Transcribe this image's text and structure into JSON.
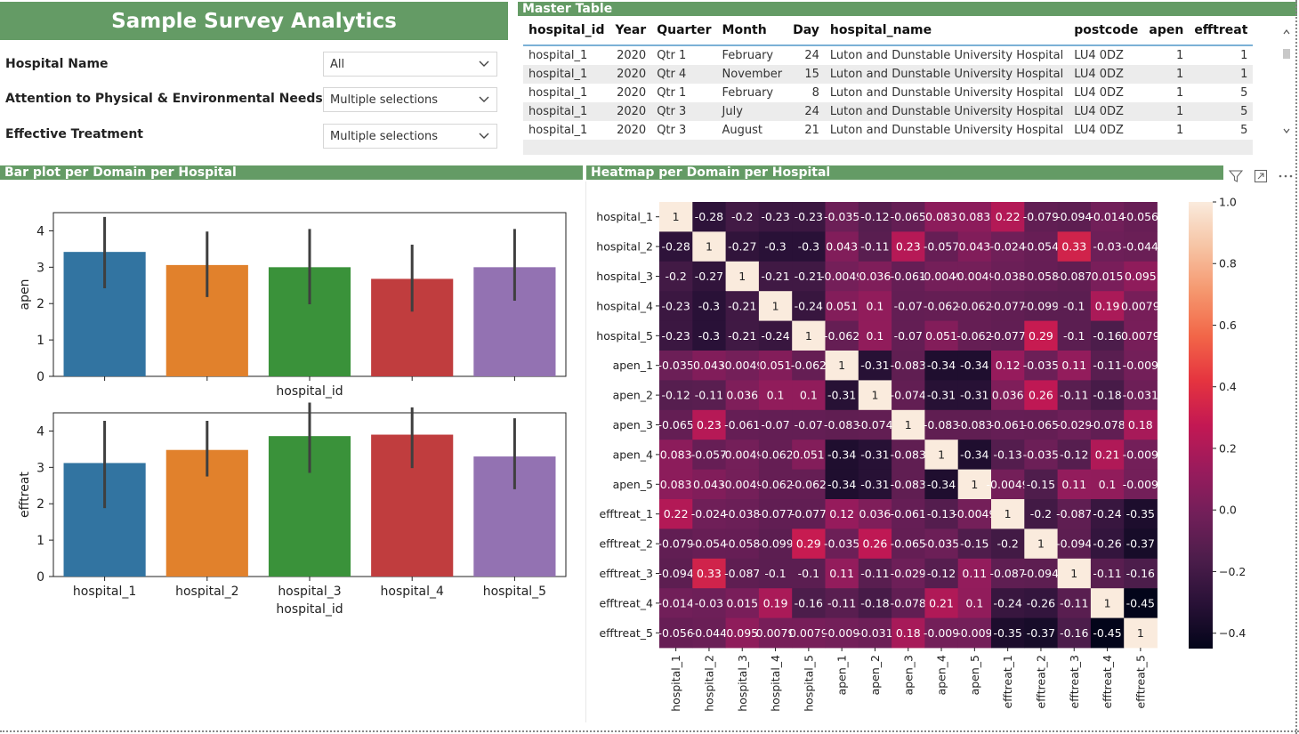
{
  "title": "Sample Survey Analytics",
  "filters": [
    {
      "label": "Hospital Name",
      "value": "All"
    },
    {
      "label": "Attention to Physical & Environmental Needs",
      "value": "Multiple selections"
    },
    {
      "label": "Effective Treatment",
      "value": "Multiple selections"
    }
  ],
  "master_table": {
    "title": "Master Table",
    "columns": [
      "hospital_id",
      "Year",
      "Quarter",
      "Month",
      "Day",
      "hospital_name",
      "postcode",
      "apen",
      "efftreat"
    ],
    "rows": [
      [
        "hospital_1",
        "2020",
        "Qtr 1",
        "February",
        "24",
        "Luton and Dunstable University Hospital",
        "LU4 0DZ",
        "1",
        "1"
      ],
      [
        "hospital_1",
        "2020",
        "Qtr 4",
        "November",
        "15",
        "Luton and Dunstable University Hospital",
        "LU4 0DZ",
        "1",
        "1"
      ],
      [
        "hospital_1",
        "2020",
        "Qtr 1",
        "February",
        "8",
        "Luton and Dunstable University Hospital",
        "LU4 0DZ",
        "1",
        "5"
      ],
      [
        "hospital_1",
        "2020",
        "Qtr 3",
        "July",
        "24",
        "Luton and Dunstable University Hospital",
        "LU4 0DZ",
        "1",
        "5"
      ],
      [
        "hospital_1",
        "2020",
        "Qtr 3",
        "August",
        "21",
        "Luton and Dunstable University Hospital",
        "LU4 0DZ",
        "1",
        "5"
      ]
    ]
  },
  "bar_section_title": "Bar plot per Domain per Hospital",
  "heatmap_section_title": "Heatmap per Domain per Hospital",
  "colors": {
    "header_green": "#649b65",
    "bar_colors": [
      "#3274a1",
      "#e1812c",
      "#3a923a",
      "#c03d3e",
      "#9372b2"
    ]
  },
  "icons": [
    "filter-icon",
    "focus-mode-icon",
    "more-options-icon",
    "chevron-down-icon"
  ],
  "chart_data": [
    {
      "type": "bar",
      "categories": [
        "hospital_1",
        "hospital_2",
        "hospital_3",
        "hospital_4",
        "hospital_5"
      ],
      "values": [
        3.42,
        3.06,
        3.0,
        2.68,
        3.0
      ],
      "error_low": [
        2.42,
        2.18,
        1.98,
        1.78,
        2.08
      ],
      "error_high": [
        4.38,
        3.98,
        4.05,
        3.62,
        4.05
      ],
      "xlabel": "hospital_id",
      "ylabel": "apen",
      "ylim": [
        0,
        4.5
      ],
      "yticks": [
        "0",
        "1",
        "2",
        "3",
        "4"
      ],
      "show_x_ticklabels": false
    },
    {
      "type": "bar",
      "categories": [
        "hospital_1",
        "hospital_2",
        "hospital_3",
        "hospital_4",
        "hospital_5"
      ],
      "values": [
        3.12,
        3.48,
        3.86,
        3.9,
        3.3
      ],
      "error_low": [
        1.88,
        2.75,
        2.85,
        2.98,
        2.4
      ],
      "error_high": [
        4.28,
        4.28,
        4.78,
        4.65,
        4.35
      ],
      "xlabel": "hospital_id",
      "ylabel": "efftreat",
      "ylim": [
        0,
        4.5
      ],
      "yticks": [
        "0",
        "1",
        "2",
        "3",
        "4"
      ],
      "show_x_ticklabels": true
    },
    {
      "type": "heatmap",
      "labels": [
        "hospital_1",
        "hospital_2",
        "hospital_3",
        "hospital_4",
        "hospital_5",
        "apen_1",
        "apen_2",
        "apen_3",
        "apen_4",
        "apen_5",
        "efftreat_1",
        "efftreat_2",
        "efftreat_3",
        "efftreat_4",
        "efftreat_5"
      ],
      "matrix": [
        [
          1,
          -0.28,
          -0.2,
          -0.23,
          -0.23,
          -0.035,
          -0.12,
          -0.065,
          0.083,
          0.083,
          0.22,
          -0.079,
          -0.094,
          -0.014,
          -0.056
        ],
        [
          -0.28,
          1,
          -0.27,
          -0.3,
          -0.3,
          0.043,
          -0.11,
          0.23,
          -0.057,
          0.043,
          -0.024,
          -0.054,
          0.33,
          -0.03,
          -0.044
        ],
        [
          -0.2,
          -0.27,
          1,
          -0.21,
          -0.21,
          -0.0049,
          0.036,
          -0.061,
          -0.0049,
          -0.0049,
          -0.038,
          -0.058,
          -0.087,
          0.015,
          0.095
        ],
        [
          -0.23,
          -0.3,
          -0.21,
          1,
          -0.24,
          0.051,
          0.1,
          -0.07,
          -0.062,
          -0.062,
          -0.077,
          -0.099,
          -0.1,
          0.19,
          0.0079
        ],
        [
          -0.23,
          -0.3,
          -0.21,
          -0.24,
          1,
          -0.062,
          0.1,
          -0.07,
          0.051,
          -0.062,
          -0.077,
          0.29,
          -0.1,
          -0.16,
          0.0079
        ],
        [
          -0.035,
          0.043,
          -0.0049,
          0.051,
          -0.062,
          1,
          -0.31,
          -0.083,
          -0.34,
          -0.34,
          0.12,
          -0.035,
          0.11,
          -0.11,
          -0.009
        ],
        [
          -0.12,
          -0.11,
          0.036,
          0.1,
          0.1,
          -0.31,
          1,
          -0.074,
          -0.31,
          -0.31,
          0.036,
          0.26,
          -0.11,
          -0.18,
          -0.031
        ],
        [
          -0.065,
          0.23,
          -0.061,
          -0.07,
          -0.07,
          -0.083,
          -0.074,
          1,
          -0.083,
          -0.083,
          -0.061,
          -0.065,
          -0.029,
          -0.078,
          0.18
        ],
        [
          0.083,
          -0.057,
          -0.0049,
          -0.062,
          0.051,
          -0.34,
          -0.31,
          -0.083,
          1,
          -0.34,
          -0.13,
          -0.035,
          -0.12,
          0.21,
          -0.009
        ],
        [
          0.083,
          0.043,
          -0.0049,
          -0.062,
          -0.062,
          -0.34,
          -0.31,
          -0.083,
          -0.34,
          1,
          -0.0049,
          -0.15,
          0.11,
          0.1,
          -0.009
        ],
        [
          0.22,
          -0.024,
          -0.038,
          -0.077,
          -0.077,
          0.12,
          0.036,
          -0.061,
          -0.13,
          -0.0049,
          1,
          -0.2,
          -0.087,
          -0.24,
          -0.35
        ],
        [
          -0.079,
          -0.054,
          -0.058,
          -0.099,
          0.29,
          -0.035,
          0.26,
          -0.065,
          -0.035,
          -0.15,
          -0.2,
          1,
          -0.094,
          -0.26,
          -0.37
        ],
        [
          -0.094,
          0.33,
          -0.087,
          -0.1,
          -0.1,
          0.11,
          -0.11,
          -0.029,
          -0.12,
          0.11,
          -0.087,
          -0.094,
          1,
          -0.11,
          -0.16
        ],
        [
          -0.014,
          -0.03,
          0.015,
          0.19,
          -0.16,
          -0.11,
          -0.18,
          -0.078,
          0.21,
          0.1,
          -0.24,
          -0.26,
          -0.11,
          1,
          -0.45
        ],
        [
          -0.056,
          -0.044,
          0.095,
          0.0079,
          0.0079,
          -0.009,
          -0.031,
          0.18,
          -0.009,
          -0.009,
          -0.35,
          -0.37,
          -0.16,
          -0.45,
          1
        ]
      ],
      "cell_text": [
        [
          "1",
          "-0.28",
          "-0.2",
          "-0.23",
          "-0.23",
          "-0.035",
          "-0.12",
          "-0.065",
          "0.083",
          "0.083",
          "0.22",
          "-0.079",
          "-0.094",
          "-0.014",
          "-0.056"
        ],
        [
          "-0.28",
          "1",
          "-0.27",
          "-0.3",
          "-0.3",
          "0.043",
          "-0.11",
          "0.23",
          "-0.057",
          "0.043",
          "-0.024",
          "-0.054",
          "0.33",
          "-0.03",
          "-0.044"
        ],
        [
          "-0.2",
          "-0.27",
          "1",
          "-0.21",
          "-0.21",
          "-0.0049",
          "0.036",
          "-0.061",
          "-0.0049",
          "-0.0049",
          "-0.038",
          "-0.058",
          "-0.087",
          "0.015",
          "0.095"
        ],
        [
          "-0.23",
          "-0.3",
          "-0.21",
          "1",
          "-0.24",
          "0.051",
          "0.1",
          "-0.07",
          "-0.062",
          "-0.062",
          "-0.077",
          "-0.099",
          "-0.1",
          "0.19",
          "0.0079"
        ],
        [
          "-0.23",
          "-0.3",
          "-0.21",
          "-0.24",
          "1",
          "-0.062",
          "0.1",
          "-0.07",
          "0.051",
          "-0.062",
          "-0.077",
          "0.29",
          "-0.1",
          "-0.16",
          "0.0079"
        ],
        [
          "-0.035",
          "0.043",
          "-0.0049",
          "0.051",
          "-0.062",
          "1",
          "-0.31",
          "-0.083",
          "-0.34",
          "-0.34",
          "0.12",
          "-0.035",
          "0.11",
          "-0.11",
          "-0.009"
        ],
        [
          "-0.12",
          "-0.11",
          "0.036",
          "0.1",
          "0.1",
          "-0.31",
          "1",
          "-0.074",
          "-0.31",
          "-0.31",
          "0.036",
          "0.26",
          "-0.11",
          "-0.18",
          "-0.031"
        ],
        [
          "-0.065",
          "0.23",
          "-0.061",
          "-0.07",
          "-0.07",
          "-0.083",
          "-0.074",
          "1",
          "-0.083",
          "-0.083",
          "-0.061",
          "-0.065",
          "-0.029",
          "-0.078",
          "0.18"
        ],
        [
          "0.083",
          "-0.057",
          "-0.0049",
          "-0.062",
          "0.051",
          "-0.34",
          "-0.31",
          "-0.083",
          "1",
          "-0.34",
          "-0.13",
          "-0.035",
          "-0.12",
          "0.21",
          "-0.009"
        ],
        [
          "0.083",
          "0.043",
          "-0.0049",
          "-0.062",
          "-0.062",
          "-0.34",
          "-0.31",
          "-0.083",
          "-0.34",
          "1",
          "-0.0049",
          "-0.15",
          "0.11",
          "0.1",
          "-0.009"
        ],
        [
          "0.22",
          "-0.024",
          "-0.038",
          "-0.077",
          "-0.077",
          "0.12",
          "0.036",
          "-0.061",
          "-0.13",
          "-0.0049",
          "1",
          "-0.2",
          "-0.087",
          "-0.24",
          "-0.35"
        ],
        [
          "-0.079",
          "-0.054",
          "-0.058",
          "-0.099",
          "0.29",
          "-0.035",
          "0.26",
          "-0.065",
          "-0.035",
          "-0.15",
          "-0.2",
          "1",
          "-0.094",
          "-0.26",
          "-0.37"
        ],
        [
          "-0.094",
          "0.33",
          "-0.087",
          "-0.1",
          "-0.1",
          "0.11",
          "-0.11",
          "-0.029",
          "-0.12",
          "0.11",
          "-0.087",
          "-0.094",
          "1",
          "-0.11",
          "-0.16"
        ],
        [
          "-0.014",
          "-0.03",
          "0.015",
          "0.19",
          "-0.16",
          "-0.11",
          "-0.18",
          "-0.078",
          "0.21",
          "0.1",
          "-0.24",
          "-0.26",
          "-0.11",
          "1",
          "-0.45"
        ],
        [
          "-0.056",
          "-0.044",
          "0.095",
          "0.0079",
          "0.0079",
          "-0.009",
          "-0.031",
          "0.18",
          "-0.009",
          "-0.009",
          "-0.35",
          "-0.37",
          "-0.16",
          "-0.45",
          "1"
        ]
      ],
      "vmin": -0.45,
      "vmax": 1.0,
      "colorbar_ticks": [
        1.0,
        0.8,
        0.6,
        0.4,
        0.2,
        0.0,
        -0.2,
        -0.4
      ],
      "colorbar_tick_labels": [
        "1.0",
        "0.8",
        "0.6",
        "0.4",
        "0.2",
        "0.0",
        "−0.2",
        "−0.4"
      ],
      "colormap": "rocket"
    }
  ]
}
